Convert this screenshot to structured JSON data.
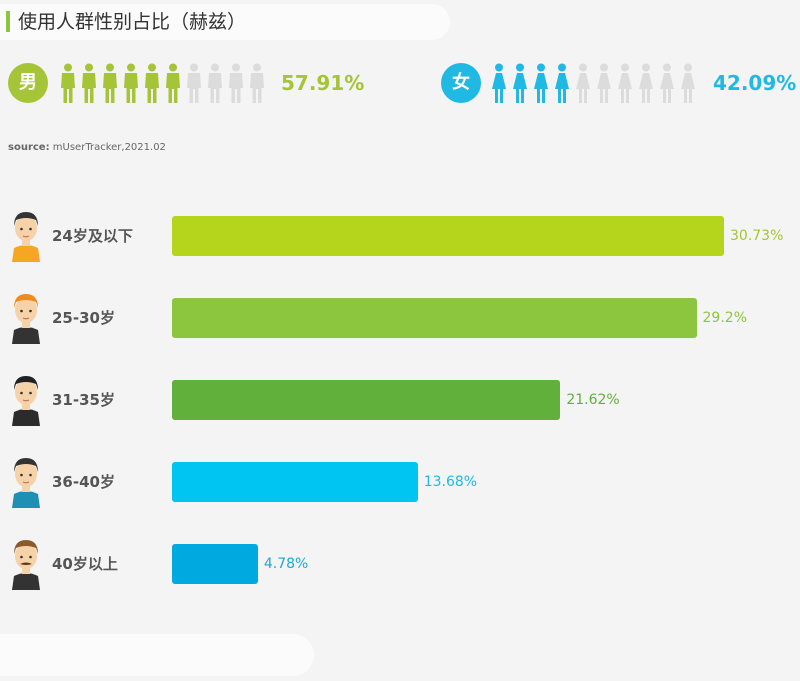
{
  "title": "使用人群性别占比（赫兹）",
  "source_label": "source:",
  "source_text": "mUserTracker,2021.02",
  "gender": {
    "male": {
      "label": "男",
      "percent": "57.91%",
      "fraction": 0.5791,
      "color": "#a6c437",
      "icon": "male-person-icon"
    },
    "female": {
      "label": "女",
      "percent": "42.09%",
      "fraction": 0.4209,
      "color": "#20b9e4",
      "icon": "female-person-icon"
    }
  },
  "chart_data": {
    "type": "bar",
    "orientation": "horizontal",
    "categories": [
      "24岁及以下",
      "25-30岁",
      "31-35岁",
      "36-40岁",
      "40岁以上"
    ],
    "values": [
      30.73,
      29.2,
      21.62,
      13.68,
      4.78
    ],
    "value_labels": [
      "30.73%",
      "29.2%",
      "21.62%",
      "13.68%",
      "4.78%"
    ],
    "colors": [
      "#b5d51c",
      "#8cc63e",
      "#62b03c",
      "#00c5f2",
      "#00a9e0"
    ],
    "label_colors": [
      "#a6c437",
      "#8cc63e",
      "#62b03c",
      "#20b9e4",
      "#20a8d8"
    ],
    "xlim": [
      0,
      30.73
    ],
    "unit": "%",
    "avatar_icons": [
      "boy-avatar-icon",
      "young-man-avatar-icon",
      "man-suit-avatar-icon",
      "man-tshirt-avatar-icon",
      "mustache-man-avatar-icon"
    ],
    "grid": false,
    "legend": "none"
  }
}
